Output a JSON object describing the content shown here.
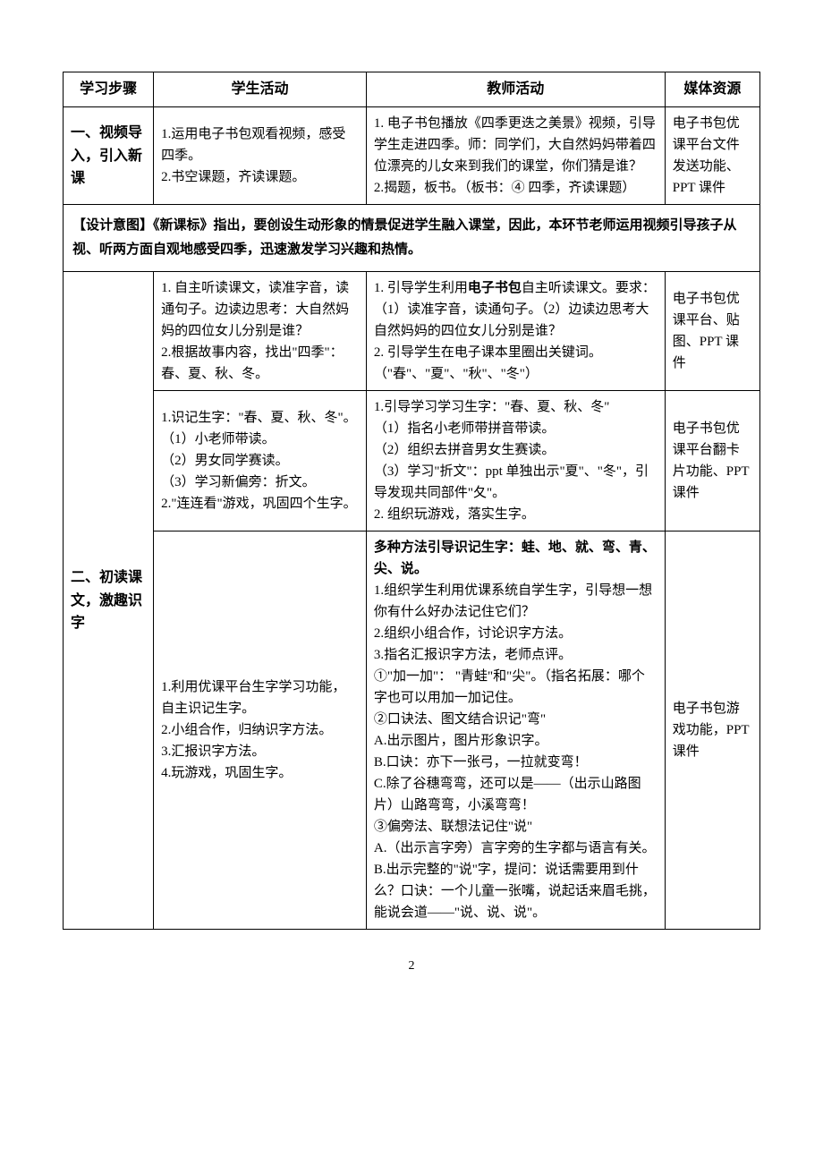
{
  "table": {
    "headers": [
      "学习步骤",
      "学生活动",
      "教师活动",
      "媒体资源"
    ],
    "section1": {
      "step": "一、视频导入，引入新课",
      "student": "1.运用电子书包观看视频，感受四季。\n2.书空课题，齐读课题。",
      "teacher": "1. 电子书包播放《四季更迭之美景》视频，引导学生走进四季。师：同学们，大自然妈妈带着四位漂亮的儿女来到我们的课堂，你们猜是谁？\n2.揭题，板书。（板书：④ 四季，齐读课题）",
      "media": "电子书包优课平台文件发送功能、PPT 课件"
    },
    "design1": "【设计意图】《新课标》指出，要创设生动形象的情景促进学生融入课堂，因此，本环节老师运用视频引导孩子从视、听两方面自观地感受四季，迅速激发学习兴趣和热情。",
    "section2": {
      "step": "二、初读课文，激趣识字",
      "rows": [
        {
          "student": "1. 自主听读课文，读准字音，读通句子。边读边思考：大自然妈妈的四位女儿分别是谁？\n2.根据故事内容，找出\"四季\"：春、夏、秋、冬。",
          "teacher_prefix": "1. 引导学生利用",
          "teacher_bold": "电子书包",
          "teacher_suffix": "自主听读课文。要求：（1）读准字音，读通句子。（2）边读边思考大自然妈妈的四位女儿分别是谁？\n2. 引导学生在电子课本里圈出关键词。（\"春\"、\"夏\"、\"秋\"、\"冬\"）",
          "media": "电子书包优课平台、贴图、PPT 课件"
        },
        {
          "student": "1.识记生字：\"春、夏、秋、冬\"。\n（1）小老师带读。\n（2）男女同学赛读。\n（3）学习新偏旁：折文。\n2.\"连连看\"游戏，巩固四个生字。",
          "teacher": "1.引导学习学习生字：\"春、夏、秋、冬\"\n（1）指名小老师带拼音带读。\n（2）组织去拼音男女生赛读。\n（3）学习\"折文\"：ppt 单独出示\"夏\"、\"冬\"，引导发现共同部件\"夂\"。\n2. 组织玩游戏，落实生字。",
          "media": "电子书包优课平台翻卡片功能、PPT课件"
        },
        {
          "student": "1.利用优课平台生字学习功能，自主识记生字。\n2.小组合作，归纳识字方法。\n3.汇报识字方法。\n4.玩游戏，巩固生字。",
          "teacher_bold_line": "多种方法引导识记生字：蛙、地、就、弯、青、尖、说。",
          "teacher_rest": "1.组织学生利用优课系统自学生字，引导想一想你有什么好办法记住它们？\n2.组织小组合作，讨论识字方法。\n3.指名汇报识字方法，老师点评。\n①\"加一加\"： \"青蛙\"和\"尖\"。（指名拓展：哪个字也可以用加一加记住。\n②口诀法、图文结合识记\"弯\"\nA.出示图片，图片形象识字。\nB.口诀：亦下一张弓，一拉就变弯！\nC.除了谷穗弯弯，还可以是——（出示山路图片）山路弯弯，小溪弯弯！\n③偏旁法、联想法记住\"说\"\nA.（出示言字旁）言字旁的生字都与语言有关。\nB.出示完整的\"说\"字，提问：说话需要用到什么？口诀：一个儿童一张嘴，说起话来眉毛挑，能说会道——\"说、说、说\"。",
          "media": "电子书包游戏功能，PPT课件"
        }
      ]
    }
  },
  "pageNumber": "2"
}
